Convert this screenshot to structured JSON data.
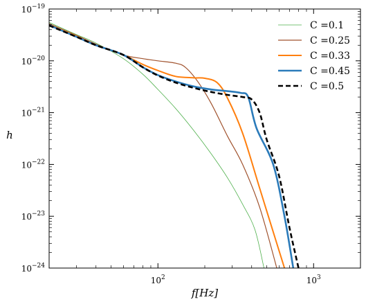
{
  "chart_data": {
    "type": "line",
    "x_scale": "log",
    "y_scale": "log",
    "xlim": [
      20,
      2000
    ],
    "ylim": [
      1e-24,
      1e-19
    ],
    "xlabel": "f[Hz]",
    "ylabel": "h",
    "x_ticks": [
      {
        "value": 100,
        "label_base": "10",
        "label_exp": "2"
      },
      {
        "value": 1000,
        "label_base": "10",
        "label_exp": "3"
      }
    ],
    "y_ticks": [
      {
        "value": 1e-19,
        "label_base": "10",
        "label_exp": "−19"
      },
      {
        "value": 1e-20,
        "label_base": "10",
        "label_exp": "−20"
      },
      {
        "value": 1e-21,
        "label_base": "10",
        "label_exp": "−21"
      },
      {
        "value": 1e-22,
        "label_base": "10",
        "label_exp": "−22"
      },
      {
        "value": 1e-23,
        "label_base": "10",
        "label_exp": "−23"
      },
      {
        "value": 1e-24,
        "label_base": "10",
        "label_exp": "−24"
      }
    ],
    "legend_position": "top-right",
    "series": [
      {
        "name": "C =0.1",
        "color": "#4daf4a",
        "style": "solid",
        "x": [
          20,
          30,
          40,
          60,
          80,
          100,
          130,
          170,
          220,
          280,
          350,
          420,
          480
        ],
        "y": [
          5.5e-20,
          3.2e-20,
          2.2e-20,
          1.1e-20,
          5.5e-21,
          2.8e-21,
          1.2e-21,
          4.5e-22,
          1.6e-22,
          5.5e-23,
          1.7e-23,
          5.5e-24,
          1e-24
        ]
      },
      {
        "name": "C =0.25",
        "color": "#a0522d",
        "style": "solid",
        "x": [
          20,
          30,
          40,
          60,
          80,
          100,
          130,
          150,
          180,
          220,
          280,
          350,
          450,
          580
        ],
        "y": [
          5.2e-20,
          3.1e-20,
          2.1e-20,
          1.3e-20,
          1.1e-20,
          1e-20,
          9e-21,
          7.5e-21,
          4e-21,
          1.5e-21,
          3.5e-22,
          1e-22,
          1.5e-23,
          1e-24
        ]
      },
      {
        "name": "C =0.33",
        "color": "#ff7f0e",
        "style": "solid",
        "x": [
          20,
          30,
          40,
          60,
          80,
          100,
          130,
          170,
          200,
          240,
          280,
          350,
          450,
          550,
          650
        ],
        "y": [
          5e-20,
          3e-20,
          2e-20,
          1.3e-20,
          8.5e-21,
          6.5e-21,
          5e-21,
          4.7e-21,
          4.6e-21,
          3.8e-21,
          1.9e-21,
          4e-22,
          3.5e-23,
          5e-24,
          1e-24
        ]
      },
      {
        "name": "C =0.45",
        "color": "#2b7bba",
        "style": "solid",
        "x": [
          20,
          30,
          40,
          60,
          80,
          100,
          130,
          170,
          220,
          280,
          340,
          380,
          430,
          550,
          650,
          740
        ],
        "y": [
          4.9e-20,
          2.9e-20,
          2e-20,
          1.3e-20,
          7.5e-21,
          5.3e-21,
          4e-21,
          3.2e-21,
          2.8e-21,
          2.6e-21,
          2.4e-21,
          2e-21,
          5e-22,
          1e-22,
          1e-23,
          1e-24
        ]
      },
      {
        "name": "C =0.5",
        "color": "#000000",
        "style": "dashed",
        "x": [
          20,
          30,
          40,
          60,
          80,
          100,
          130,
          170,
          220,
          280,
          350,
          400,
          450,
          500,
          600,
          700,
          800
        ],
        "y": [
          4.8e-20,
          2.9e-20,
          2e-20,
          1.3e-20,
          7.5e-21,
          5.2e-21,
          3.8e-21,
          3e-21,
          2.5e-21,
          2.2e-21,
          2e-21,
          1.8e-21,
          1e-21,
          3e-22,
          6e-23,
          6e-24,
          1e-24
        ]
      }
    ]
  }
}
